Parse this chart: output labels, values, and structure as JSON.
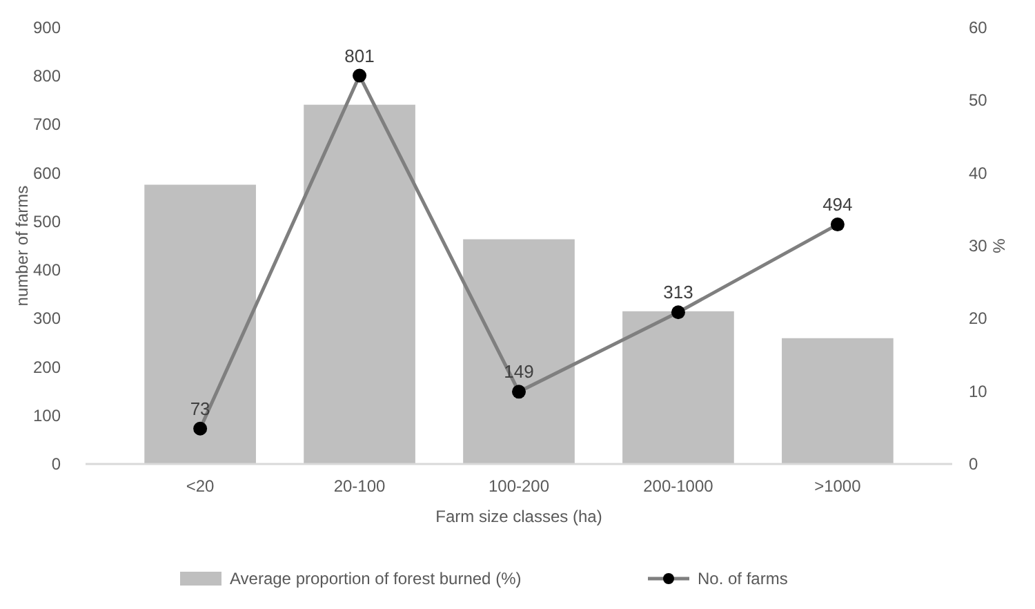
{
  "chart_data": {
    "type": "bar",
    "xlabel": "Farm size classes (ha)",
    "ylabel": "number of farms",
    "y2label": "%",
    "categories": [
      "<20",
      "20-100",
      "100-200",
      "200-1000",
      ">1000"
    ],
    "series": [
      {
        "name": "Average proportion of forest burned (%)",
        "axis": "y2",
        "color": "#bfbfbf",
        "values": [
          38.4,
          49.4,
          30.9,
          21.0,
          17.3
        ]
      },
      {
        "name": "No. of farms",
        "type": "line",
        "axis": "y",
        "color": "#7f7f7f",
        "marker": "circle",
        "values": [
          73,
          801,
          149,
          313,
          494
        ],
        "value_labels": [
          "73",
          "801",
          "149",
          "313",
          "494"
        ]
      }
    ],
    "ylim": [
      0,
      900
    ],
    "yticks": [
      0,
      100,
      200,
      300,
      400,
      500,
      600,
      700,
      800,
      900
    ],
    "y2lim": [
      0,
      60
    ],
    "y2ticks": [
      0,
      10,
      20,
      30,
      40,
      50,
      60
    ],
    "legend": "bottom",
    "grid": false
  }
}
